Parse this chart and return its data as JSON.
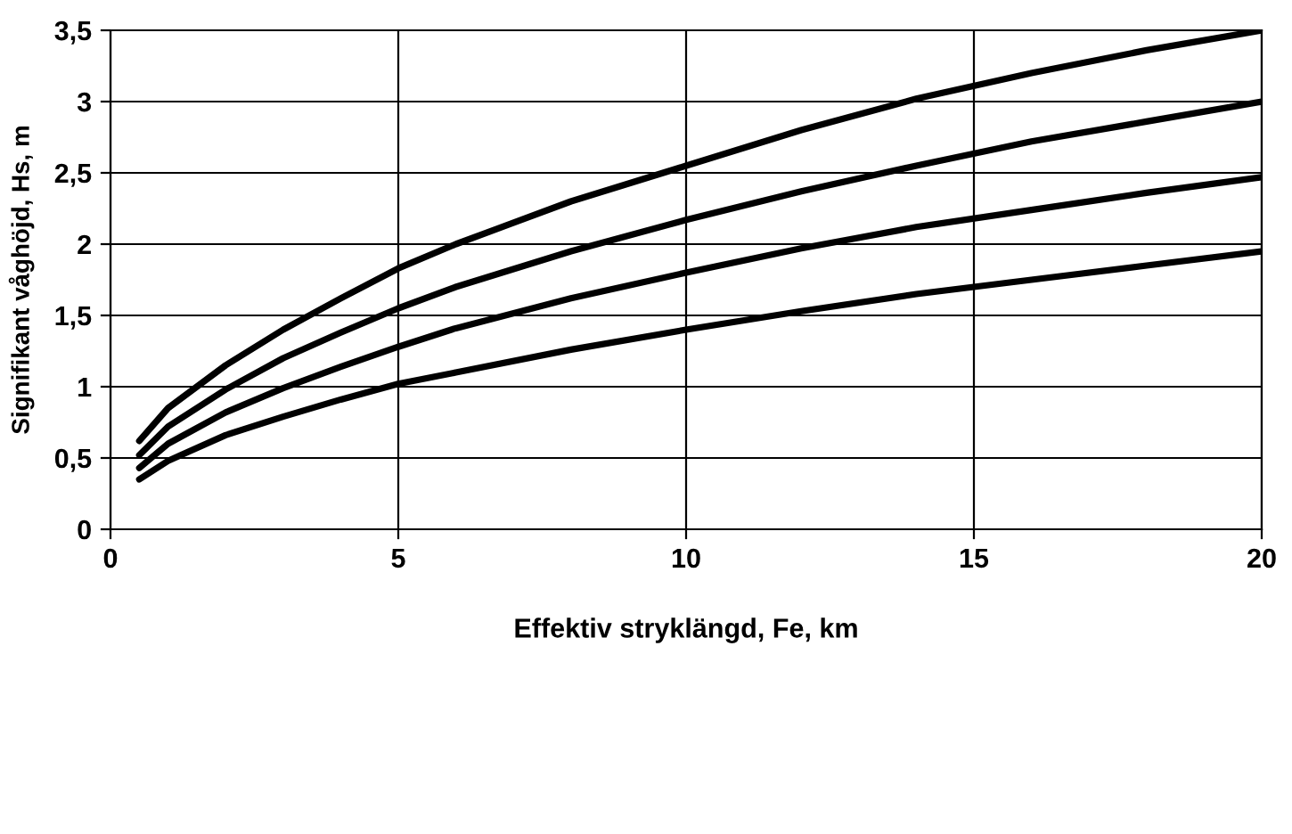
{
  "chart_data": {
    "type": "line",
    "xlabel": "Effektiv stryklängd, Fe, km",
    "ylabel": "Signifikant våghöjd, Hs, m",
    "x": [
      0.5,
      1,
      2,
      3,
      4,
      5,
      6,
      8,
      10,
      12,
      14,
      16,
      18,
      20
    ],
    "series": [
      {
        "color": "#000000",
        "values": [
          0.62,
          0.85,
          1.15,
          1.4,
          1.62,
          1.83,
          2.0,
          2.3,
          2.55,
          2.8,
          3.02,
          3.2,
          3.36,
          3.5
        ]
      },
      {
        "color": "#000000",
        "values": [
          0.52,
          0.72,
          0.98,
          1.2,
          1.38,
          1.55,
          1.7,
          1.95,
          2.17,
          2.37,
          2.55,
          2.72,
          2.86,
          3.0
        ]
      },
      {
        "color": "#000000",
        "values": [
          0.43,
          0.6,
          0.82,
          0.99,
          1.14,
          1.28,
          1.41,
          1.62,
          1.8,
          1.97,
          2.12,
          2.24,
          2.36,
          2.47
        ]
      },
      {
        "color": "#000000",
        "values": [
          0.35,
          0.48,
          0.66,
          0.79,
          0.91,
          1.02,
          1.1,
          1.26,
          1.4,
          1.53,
          1.65,
          1.75,
          1.85,
          1.95
        ]
      }
    ],
    "xlim": [
      0,
      20
    ],
    "xticks": [
      0,
      5,
      10,
      15,
      20
    ],
    "ylim": [
      0,
      3.5
    ],
    "yticks": [
      0,
      {
        "value": 0.5,
        "label": "0,5"
      },
      1,
      {
        "value": 1.5,
        "label": "1,5"
      },
      2,
      {
        "value": 2.5,
        "label": "2,5"
      },
      3,
      {
        "value": 3.5,
        "label": "3,5"
      }
    ],
    "grid": true,
    "line_style": "solid",
    "marker": "none"
  }
}
